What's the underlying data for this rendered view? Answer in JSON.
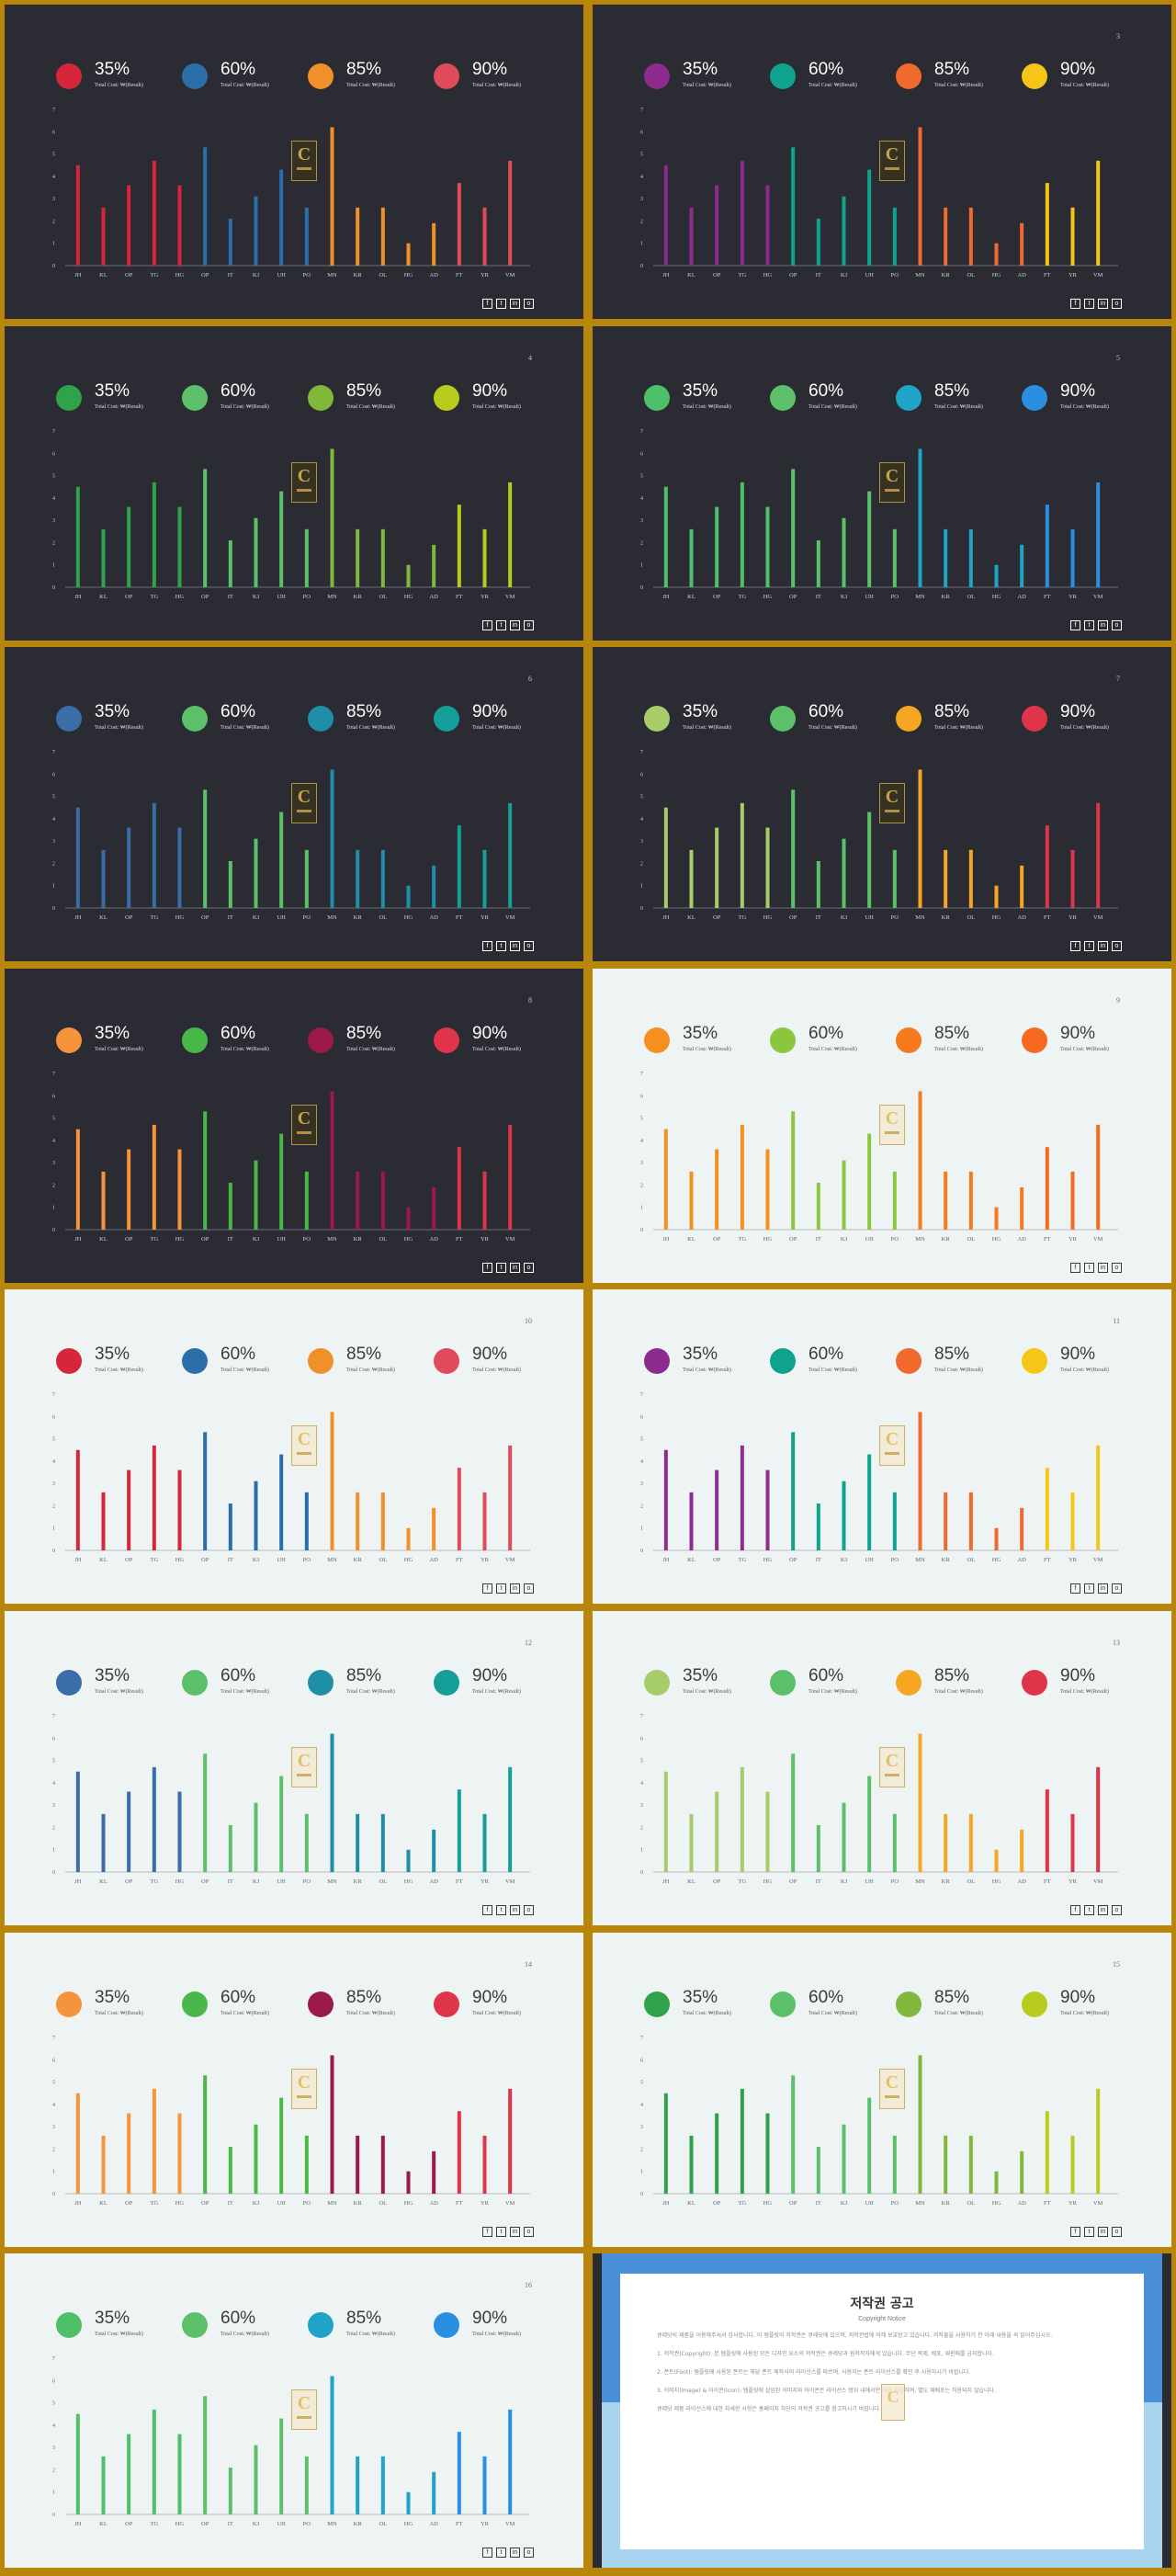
{
  "stat_sub_label": "Total Cost: ₩(Result)",
  "social_icons": [
    "facebook-icon",
    "twitter-icon",
    "linkedin-icon",
    "instagram-icon"
  ],
  "chart_data": {
    "type": "bar",
    "categories": [
      "JH",
      "KL",
      "OP",
      "TG",
      "HG",
      "OP",
      "IT",
      "KJ",
      "UH",
      "PO",
      "MN",
      "KR",
      "OL",
      "HG",
      "AD",
      "FT",
      "YR",
      "VM"
    ],
    "values": [
      4.5,
      2.6,
      3.6,
      4.7,
      3.6,
      5.3,
      2.1,
      3.1,
      4.3,
      2.6,
      6.2,
      2.6,
      2.6,
      1.0,
      1.9,
      3.7,
      2.6,
      4.7
    ],
    "ylim": [
      0,
      7
    ],
    "yticks": [
      0,
      1,
      2,
      3,
      4,
      5,
      6,
      7
    ],
    "color_group_boundaries": [
      5,
      10,
      15
    ]
  },
  "slides": [
    {
      "number": "",
      "theme": "dark",
      "stats": [
        "35%",
        "60%",
        "85%",
        "90%"
      ],
      "colors": [
        "#d5263b",
        "#2a6faa",
        "#f0902a",
        "#e04a5a"
      ]
    },
    {
      "number": "3",
      "theme": "dark",
      "stats": [
        "35%",
        "60%",
        "85%",
        "90%"
      ],
      "colors": [
        "#8e2b8f",
        "#0fa38e",
        "#ef6a2c",
        "#f5c518"
      ]
    },
    {
      "number": "4",
      "theme": "dark",
      "stats": [
        "35%",
        "60%",
        "85%",
        "90%"
      ],
      "colors": [
        "#2fa24a",
        "#5cc06a",
        "#7fb83a",
        "#b9cc1e"
      ]
    },
    {
      "number": "5",
      "theme": "dark",
      "stats": [
        "35%",
        "60%",
        "85%",
        "90%"
      ],
      "colors": [
        "#4fc06a",
        "#5cc06a",
        "#1fa3c6",
        "#2a8fe0"
      ]
    },
    {
      "number": "6",
      "theme": "dark",
      "stats": [
        "35%",
        "60%",
        "85%",
        "90%"
      ],
      "colors": [
        "#3b6ea8",
        "#5cc06a",
        "#1f8fa8",
        "#159e9a"
      ]
    },
    {
      "number": "7",
      "theme": "dark",
      "stats": [
        "35%",
        "60%",
        "85%",
        "90%"
      ],
      "colors": [
        "#a7cc6a",
        "#5cc06a",
        "#f5a623",
        "#e0344a"
      ]
    },
    {
      "number": "8",
      "theme": "dark",
      "stats": [
        "35%",
        "60%",
        "85%",
        "90%"
      ],
      "colors": [
        "#f5943a",
        "#4ab848",
        "#9b1a4a",
        "#e0344a"
      ]
    },
    {
      "number": "9",
      "theme": "light",
      "stats": [
        "35%",
        "60%",
        "85%",
        "90%"
      ],
      "colors": [
        "#f5901e",
        "#8cc63f",
        "#f57b1e",
        "#f56a1e"
      ]
    },
    {
      "number": "10",
      "theme": "light",
      "stats": [
        "35%",
        "60%",
        "85%",
        "90%"
      ],
      "colors": [
        "#d5263b",
        "#2a6faa",
        "#f0902a",
        "#e04a5a"
      ]
    },
    {
      "number": "11",
      "theme": "light",
      "stats": [
        "35%",
        "60%",
        "85%",
        "90%"
      ],
      "colors": [
        "#8e2b8f",
        "#0fa38e",
        "#ef6a2c",
        "#f5c518"
      ]
    },
    {
      "number": "12",
      "theme": "light",
      "stats": [
        "35%",
        "60%",
        "85%",
        "90%"
      ],
      "colors": [
        "#3b6ea8",
        "#5cc06a",
        "#1f8fa8",
        "#159e9a"
      ]
    },
    {
      "number": "13",
      "theme": "light",
      "stats": [
        "35%",
        "60%",
        "85%",
        "90%"
      ],
      "colors": [
        "#a7cc6a",
        "#5cc06a",
        "#f5a623",
        "#e0344a"
      ]
    },
    {
      "number": "14",
      "theme": "light",
      "stats": [
        "35%",
        "60%",
        "85%",
        "90%"
      ],
      "colors": [
        "#f5943a",
        "#4ab848",
        "#9b1a4a",
        "#e0344a"
      ]
    },
    {
      "number": "15",
      "theme": "light",
      "stats": [
        "35%",
        "60%",
        "85%",
        "90%"
      ],
      "colors": [
        "#2fa24a",
        "#5cc06a",
        "#7fb83a",
        "#b9cc1e"
      ]
    },
    {
      "number": "16",
      "theme": "light",
      "stats": [
        "35%",
        "60%",
        "85%",
        "90%"
      ],
      "colors": [
        "#4fc06a",
        "#5cc06a",
        "#1fa3c6",
        "#2a8fe0"
      ]
    }
  ],
  "copyright": {
    "title": "저작권 공고",
    "subtitle": "Copyright Notice",
    "paragraphs": [
      "큐레닷의 제품을 이용해주셔서 감사합니다. 이 템플릿의 저작권은 큐레닷에 있으며, 저작권법에 의해 보호받고 있습니다. 저작물을 사용하기 전 아래 내용을 꼭 읽어주십시오.",
      "1. 저작권(Copyright): 본 템플릿에 사용된 모든 디자인 요소의 저작권은 큐레닷과 원저작자에게 있습니다. 무단 복제, 배포, 재판매를 금지합니다.",
      "2. 폰트(Font): 템플릿에 사용된 폰트는 해당 폰트 제작사의 라이선스를 따르며, 사용자는 폰트 라이선스를 확인 후 사용하시기 바랍니다.",
      "3. 이미지(Image) & 아이콘(Icon): 템플릿에 삽입된 이미지와 아이콘은 라이선스 범위 내에서만 사용 가능하며, 별도 재배포는 허용되지 않습니다.",
      "큐레닷 제품 라이선스에 대한 자세한 사항은 홈페이지 하단의 저작권 공고를 참고하시기 바랍니다."
    ]
  }
}
